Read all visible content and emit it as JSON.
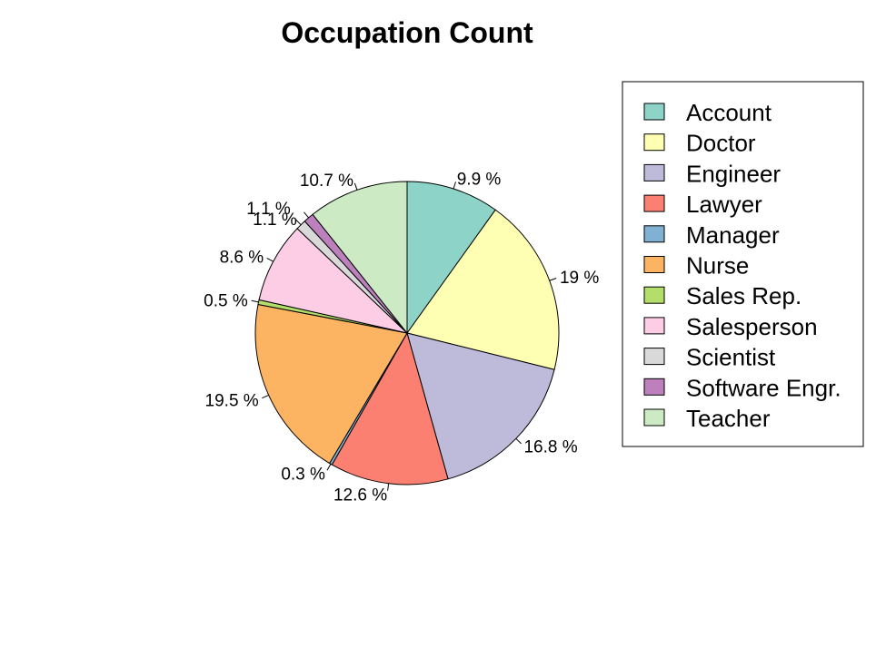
{
  "chart_data": {
    "type": "pie",
    "title": "Occupation Count",
    "categories": [
      "Account",
      "Doctor",
      "Engineer",
      "Lawyer",
      "Manager",
      "Nurse",
      "Sales Rep.",
      "Salesperson",
      "Scientist",
      "Software Engr.",
      "Teacher"
    ],
    "values": [
      9.9,
      19,
      16.8,
      12.6,
      0.3,
      19.5,
      0.5,
      8.6,
      1.1,
      1.1,
      10.7
    ],
    "labels": [
      "9.9 %",
      "19 %",
      "16.8 %",
      "12.6 %",
      "0.3 %",
      "19.5 %",
      "0.5 %",
      "8.6 %",
      "1.1 %",
      "1.1 %",
      "10.7 %"
    ],
    "colors": [
      "#8DD3C7",
      "#FFFFB3",
      "#BEBADA",
      "#FB8072",
      "#80B1D3",
      "#FDB462",
      "#B3DE69",
      "#FCCDE5",
      "#D9D9D9",
      "#BC80BD",
      "#CCEBC5"
    ],
    "start_angle_deg": 90,
    "direction": "clockwise",
    "legend_position": "right"
  }
}
